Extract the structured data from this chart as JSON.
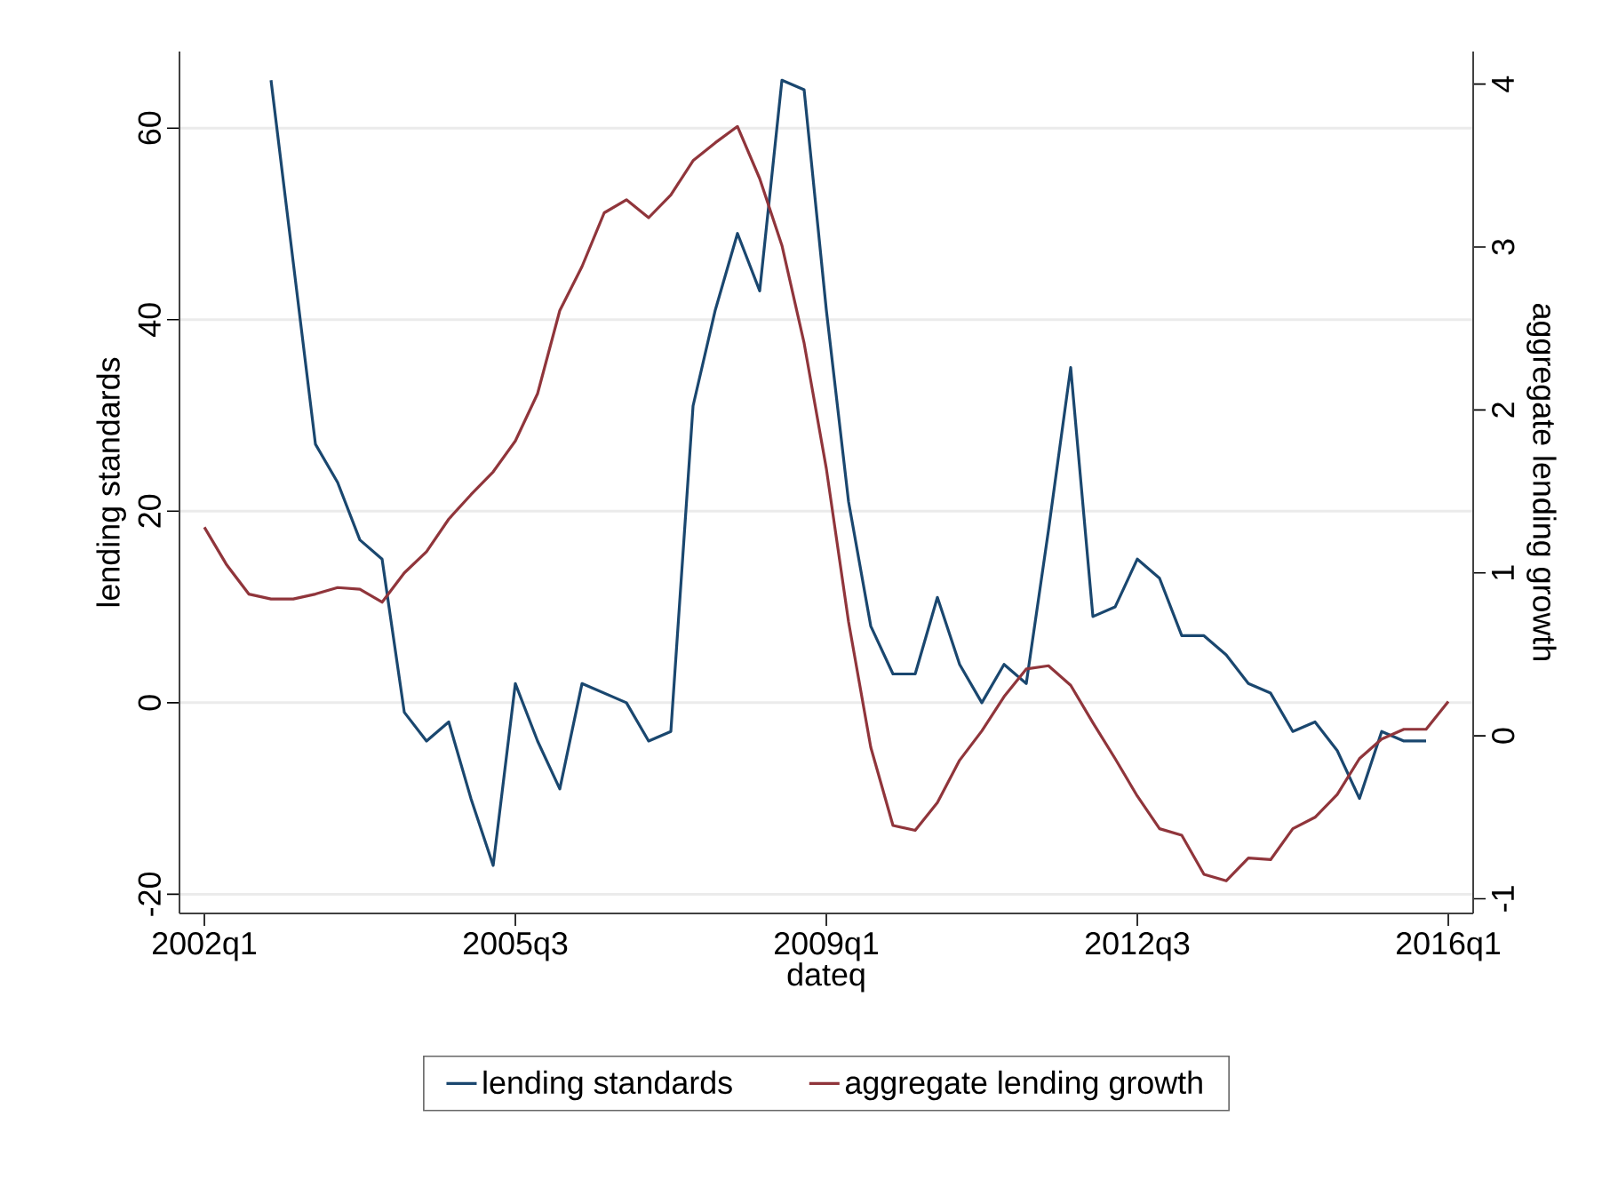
{
  "chart_data": {
    "type": "line",
    "xlabel": "dateq",
    "ylabel": "lending standards",
    "y2label": "aggregate lending growth",
    "categories": [
      "2002q1",
      null,
      null,
      null,
      null,
      null,
      null,
      null,
      null,
      null,
      null,
      null,
      null,
      null,
      "2005q3",
      null,
      null,
      null,
      null,
      null,
      null,
      null,
      null,
      null,
      null,
      null,
      null,
      null,
      "2009q1",
      null,
      null,
      null,
      null,
      null,
      null,
      null,
      null,
      null,
      null,
      null,
      null,
      null,
      "2012q3",
      null,
      null,
      null,
      null,
      null,
      null,
      null,
      null,
      null,
      null,
      null,
      null,
      null,
      "2016q1"
    ],
    "series": [
      {
        "name": "lending standards",
        "color": "#1a476f",
        "values": [
          null,
          null,
          null,
          65,
          46,
          27,
          23,
          17,
          15,
          -1,
          -4,
          -2,
          -10,
          -17,
          2,
          -4,
          -9,
          2,
          1,
          0,
          -4,
          -3,
          31,
          41,
          49,
          43,
          65,
          64,
          41,
          21,
          8,
          3,
          3,
          11,
          4,
          0,
          4,
          2,
          18,
          35,
          9,
          10,
          15,
          13,
          7,
          7,
          5,
          2,
          1,
          -3,
          -2,
          -5,
          -10,
          -3,
          -4,
          -4,
          null
        ]
      },
      {
        "name": "aggregate lending growth",
        "color": "#90353b",
        "axis": "y2",
        "values": [
          1.28,
          1.05,
          0.87,
          0.84,
          0.84,
          0.87,
          0.91,
          0.9,
          0.82,
          1.0,
          1.13,
          1.33,
          1.48,
          1.62,
          1.81,
          2.1,
          2.61,
          2.88,
          3.21,
          3.29,
          3.18,
          3.32,
          3.53,
          3.64,
          3.74,
          3.42,
          3.01,
          2.41,
          1.64,
          0.7,
          -0.07,
          -0.55,
          -0.58,
          -0.41,
          -0.15,
          0.03,
          0.24,
          0.41,
          0.43,
          0.31,
          0.08,
          -0.14,
          -0.37,
          -0.57,
          -0.61,
          -0.85,
          -0.89,
          -0.75,
          -0.76,
          -0.57,
          -0.5,
          -0.36,
          -0.14,
          -0.02,
          0.04,
          0.04,
          0.21
        ]
      }
    ],
    "ylim": [
      -22,
      68
    ],
    "yticks": [
      -20,
      0,
      20,
      40,
      60
    ],
    "y2lim": [
      -1.09,
      4.2
    ],
    "y2ticks": [
      -1,
      0,
      1,
      2,
      3,
      4
    ],
    "grid": "y",
    "legend": "bottom"
  }
}
